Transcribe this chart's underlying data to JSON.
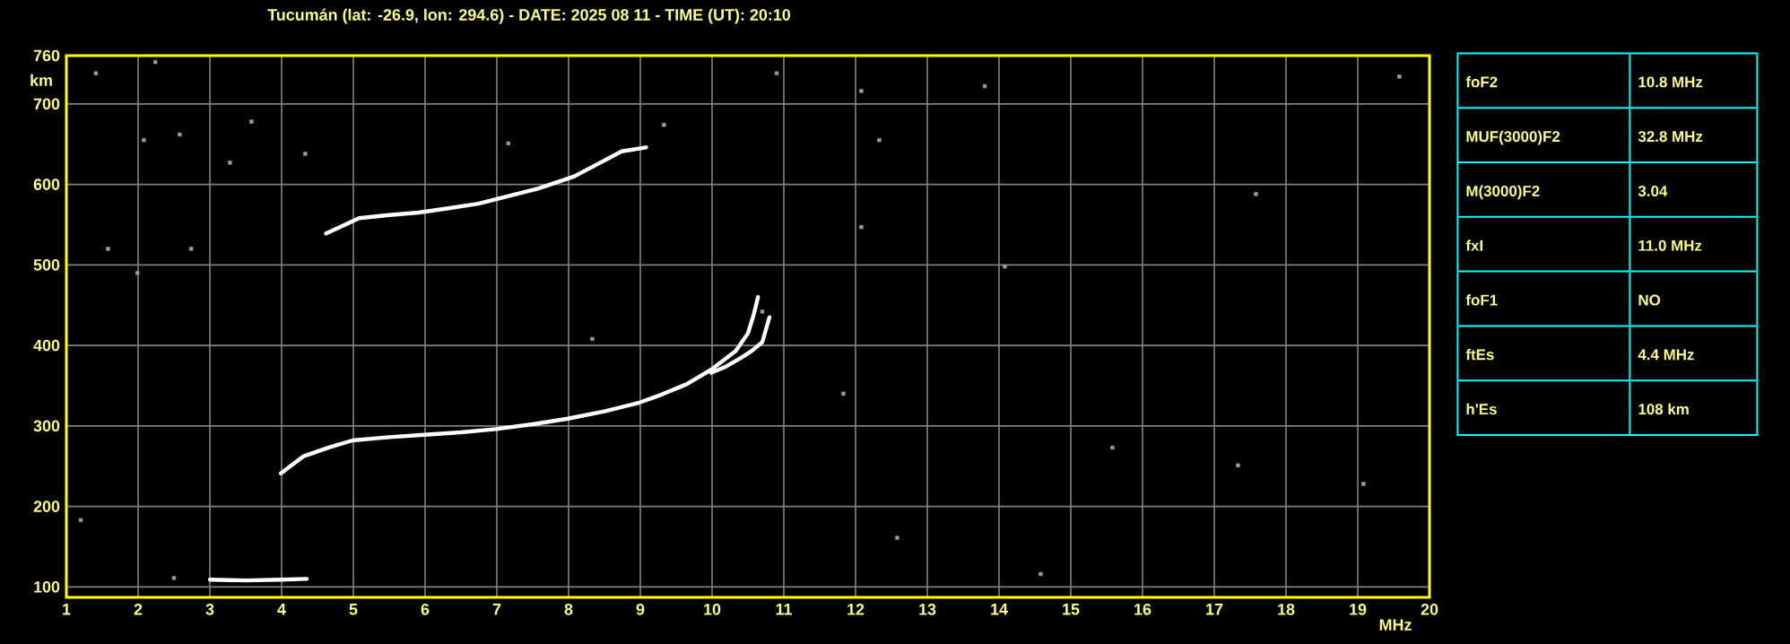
{
  "chart_data": [
    {
      "type": "line",
      "title": "Tucumán (lat: -26.9, lon: 294.6) - DATE: 2025 08 11 - TIME (UT): 20:10",
      "xlabel": "MHz",
      "ylabel": "km",
      "xlim": [
        1,
        20
      ],
      "ylim": [
        87,
        760
      ],
      "xticks": [
        1,
        2,
        3,
        4,
        5,
        6,
        7,
        8,
        9,
        10,
        11,
        12,
        13,
        14,
        15,
        16,
        17,
        18,
        19,
        20
      ],
      "yticks": [
        100,
        200,
        300,
        400,
        500,
        600,
        700,
        760
      ],
      "grid": true,
      "series": [
        {
          "type": "line",
          "color": "#ffffff",
          "x": [
            3.99,
            4.3,
            4.65,
            4.99,
            5.5,
            5.99,
            6.5,
            6.99,
            7.5,
            7.99,
            8.5,
            8.99,
            9.3,
            9.65,
            9.99,
            10.33,
            10.5,
            10.58,
            10.64
          ],
          "values": [
            241,
            262,
            273,
            282,
            286,
            289,
            292,
            296,
            302,
            309,
            318,
            329,
            339,
            352,
            370,
            393,
            415,
            438,
            460
          ]
        },
        {
          "type": "line",
          "color": "#ffffff",
          "x": [
            9.99,
            10.2,
            10.41,
            10.55,
            10.7,
            10.8
          ],
          "values": [
            366,
            374,
            385,
            393,
            404,
            435
          ]
        },
        {
          "type": "line",
          "color": "#ffffff",
          "x": [
            4.62,
            5.08,
            5.5,
            5.91,
            6.3,
            6.74,
            7.1,
            7.58,
            8.08,
            8.4,
            8.74,
            9.08
          ],
          "values": [
            539,
            558,
            562,
            565,
            570,
            576,
            584,
            595,
            610,
            625,
            641,
            646
          ]
        },
        {
          "type": "line",
          "color": "#ffffff",
          "x": [
            3.0,
            3.5,
            4.0,
            4.35
          ],
          "values": [
            109,
            108,
            109,
            110
          ]
        },
        {
          "type": "scatter",
          "marker": "square",
          "color": "#9a9a9a",
          "x": [
            2.24,
            2.58,
            2.08,
            3.28,
            4.33,
            7.16,
            9.33,
            12.08,
            10.9,
            12.08,
            12.33,
            2.74,
            1.99,
            1.41,
            17.33,
            10.7,
            14.08,
            17.58,
            19.58,
            13.8,
            1.2,
            1.58,
            19.08,
            12.58,
            15.58,
            11.83,
            14.58,
            8.33,
            3.58,
            2.5
          ],
          "values": [
            752,
            662,
            655,
            627,
            638,
            651,
            674,
            547,
            738,
            716,
            655,
            520,
            490,
            738,
            251,
            442,
            498,
            588,
            734,
            722,
            183,
            520,
            228,
            161,
            273,
            340,
            116,
            408,
            678,
            111
          ]
        }
      ]
    },
    {
      "type": "other",
      "annotations": [
        "foF2",
        "10.8 MHz",
        "MUF(3000)F2",
        "32.8 MHz",
        "M(3000)F2",
        "3.04",
        "fxI",
        "11.0 MHz",
        "foF1",
        "NO",
        "ftEs",
        "4.4 MHz",
        "h'Es",
        "108 km"
      ]
    }
  ]
}
